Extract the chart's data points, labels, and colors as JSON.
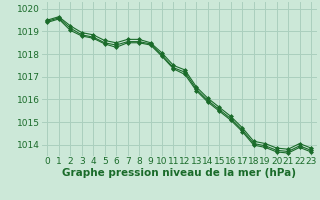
{
  "background_color": "#cce8d8",
  "grid_color": "#aacfbe",
  "line_color": "#1a6b2a",
  "marker_color": "#1a6b2a",
  "xlabel": "Graphe pression niveau de la mer (hPa)",
  "xlabel_fontsize": 7.5,
  "ylabel_fontsize": 6.5,
  "tick_fontsize": 6.5,
  "xlim": [
    -0.5,
    23.5
  ],
  "ylim": [
    1013.5,
    1020.3
  ],
  "yticks": [
    1014,
    1015,
    1016,
    1017,
    1018,
    1019,
    1020
  ],
  "xticks": [
    0,
    1,
    2,
    3,
    4,
    5,
    6,
    7,
    8,
    9,
    10,
    11,
    12,
    13,
    14,
    15,
    16,
    17,
    18,
    19,
    20,
    21,
    22,
    23
  ],
  "series1": [
    1019.5,
    1019.65,
    1019.25,
    1018.95,
    1018.85,
    1018.6,
    1018.5,
    1018.65,
    1018.65,
    1018.5,
    1018.05,
    1017.5,
    1017.3,
    1016.55,
    1016.05,
    1015.65,
    1015.25,
    1014.75,
    1014.15,
    1014.05,
    1013.85,
    1013.8,
    1014.05,
    1013.85
  ],
  "series2": [
    1019.45,
    1019.6,
    1019.15,
    1018.85,
    1018.75,
    1018.5,
    1018.4,
    1018.55,
    1018.55,
    1018.45,
    1017.95,
    1017.4,
    1017.2,
    1016.45,
    1015.95,
    1015.55,
    1015.15,
    1014.65,
    1014.05,
    1013.95,
    1013.75,
    1013.7,
    1013.95,
    1013.75
  ],
  "series3": [
    1019.4,
    1019.55,
    1019.05,
    1018.8,
    1018.7,
    1018.45,
    1018.3,
    1018.5,
    1018.5,
    1018.4,
    1017.9,
    1017.35,
    1017.1,
    1016.38,
    1015.88,
    1015.48,
    1015.08,
    1014.58,
    1013.98,
    1013.88,
    1013.68,
    1013.63,
    1013.88,
    1013.68
  ]
}
